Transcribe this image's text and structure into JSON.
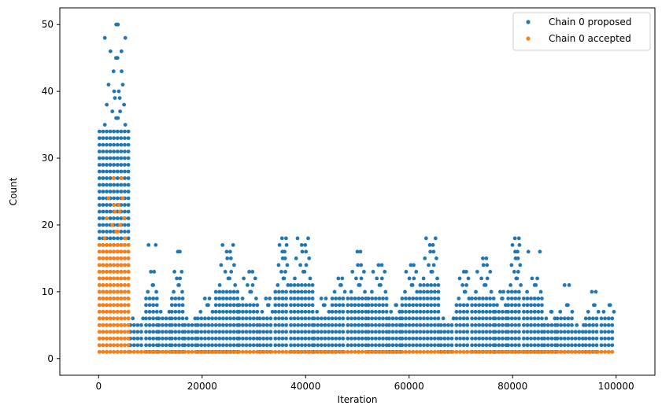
{
  "chart_data": {
    "type": "scatter",
    "xlabel": "Iteration",
    "ylabel": "Count",
    "xlim": [
      -7500,
      107500
    ],
    "ylim": [
      -2.5,
      52.5
    ],
    "xticks": [
      0,
      20000,
      40000,
      60000,
      80000,
      100000
    ],
    "yticks": [
      0,
      10,
      20,
      30,
      40,
      50
    ],
    "legend_position": "top-right",
    "grid": false,
    "series": [
      {
        "name": "Chain 0 proposed",
        "color": "#1f77b4",
        "segments": [
          {
            "x_start": 0,
            "x_end": 6000,
            "y_min": 1,
            "y_max": 34,
            "sparse": [
              35,
              36,
              37,
              38,
              39,
              40,
              41,
              43,
              45,
              46,
              48,
              50
            ]
          },
          {
            "x_start": 6000,
            "x_end": 9000,
            "y_min": 1,
            "y_max": 5,
            "sparse": [
              6
            ]
          },
          {
            "x_start": 9000,
            "x_end": 11500,
            "y_min": 1,
            "y_max": 9,
            "sparse": [
              10,
              11,
              13,
              17
            ]
          },
          {
            "x_start": 11500,
            "x_end": 14000,
            "y_min": 1,
            "y_max": 6,
            "sparse": [
              7
            ]
          },
          {
            "x_start": 14000,
            "x_end": 16500,
            "y_min": 1,
            "y_max": 9,
            "sparse": [
              10,
              11,
              12,
              13,
              16
            ]
          },
          {
            "x_start": 16500,
            "x_end": 19000,
            "y_min": 1,
            "y_max": 5,
            "sparse": [
              6
            ]
          },
          {
            "x_start": 19000,
            "x_end": 22500,
            "y_min": 1,
            "y_max": 6,
            "sparse": [
              7,
              8,
              9
            ]
          },
          {
            "x_start": 22500,
            "x_end": 27000,
            "y_min": 1,
            "y_max": 10,
            "sparse": [
              11,
              12,
              13,
              14,
              15,
              16,
              17
            ]
          },
          {
            "x_start": 27000,
            "x_end": 31000,
            "y_min": 1,
            "y_max": 8,
            "sparse": [
              9,
              10,
              11,
              12,
              13
            ]
          },
          {
            "x_start": 31000,
            "x_end": 34000,
            "y_min": 1,
            "y_max": 6,
            "sparse": [
              7,
              8,
              9
            ]
          },
          {
            "x_start": 34000,
            "x_end": 37000,
            "y_min": 1,
            "y_max": 10,
            "sparse": [
              11,
              12,
              13,
              14,
              15,
              16,
              17,
              18
            ]
          },
          {
            "x_start": 37000,
            "x_end": 41500,
            "y_min": 1,
            "y_max": 11,
            "sparse": [
              12,
              13,
              14,
              15,
              16,
              17,
              18
            ]
          },
          {
            "x_start": 41500,
            "x_end": 45000,
            "y_min": 1,
            "y_max": 6,
            "sparse": [
              7,
              8,
              9
            ]
          },
          {
            "x_start": 45000,
            "x_end": 48000,
            "y_min": 1,
            "y_max": 9,
            "sparse": [
              10,
              11,
              12
            ]
          },
          {
            "x_start": 48000,
            "x_end": 52000,
            "y_min": 1,
            "y_max": 9,
            "sparse": [
              10,
              11,
              12,
              13,
              14,
              16
            ]
          },
          {
            "x_start": 52000,
            "x_end": 56000,
            "y_min": 1,
            "y_max": 9,
            "sparse": [
              10,
              11,
              12,
              13,
              14
            ]
          },
          {
            "x_start": 56000,
            "x_end": 58500,
            "y_min": 1,
            "y_max": 6,
            "sparse": [
              7,
              8
            ]
          },
          {
            "x_start": 58500,
            "x_end": 62000,
            "y_min": 1,
            "y_max": 9,
            "sparse": [
              10,
              11,
              12,
              13,
              14
            ]
          },
          {
            "x_start": 62000,
            "x_end": 66000,
            "y_min": 1,
            "y_max": 11,
            "sparse": [
              12,
              13,
              14,
              15,
              16,
              17,
              18
            ]
          },
          {
            "x_start": 66000,
            "x_end": 69000,
            "y_min": 1,
            "y_max": 5,
            "sparse": [
              6
            ]
          },
          {
            "x_start": 69000,
            "x_end": 72000,
            "y_min": 1,
            "y_max": 8,
            "sparse": [
              9,
              10,
              11,
              12,
              13
            ]
          },
          {
            "x_start": 72000,
            "x_end": 76500,
            "y_min": 1,
            "y_max": 9,
            "sparse": [
              10,
              11,
              12,
              13,
              14,
              15
            ]
          },
          {
            "x_start": 76500,
            "x_end": 79000,
            "y_min": 1,
            "y_max": 7,
            "sparse": [
              8,
              9,
              10
            ]
          },
          {
            "x_start": 79000,
            "x_end": 82000,
            "y_min": 1,
            "y_max": 10,
            "sparse": [
              11,
              12,
              13,
              14,
              15,
              16,
              17,
              18
            ]
          },
          {
            "x_start": 82000,
            "x_end": 86000,
            "y_min": 1,
            "y_max": 9,
            "sparse": [
              10,
              11,
              12,
              16
            ]
          },
          {
            "x_start": 86000,
            "x_end": 88500,
            "y_min": 1,
            "y_max": 5,
            "sparse": [
              6,
              7
            ]
          },
          {
            "x_start": 88500,
            "x_end": 92000,
            "y_min": 1,
            "y_max": 6,
            "sparse": [
              7,
              8,
              11
            ]
          },
          {
            "x_start": 92000,
            "x_end": 94000,
            "y_min": 1,
            "y_max": 4,
            "sparse": [
              5
            ]
          },
          {
            "x_start": 94000,
            "x_end": 97000,
            "y_min": 1,
            "y_max": 6,
            "sparse": [
              7,
              8,
              10
            ]
          },
          {
            "x_start": 97000,
            "x_end": 100000,
            "y_min": 1,
            "y_max": 6,
            "sparse": [
              7,
              8
            ]
          }
        ]
      },
      {
        "name": "Chain 0 accepted",
        "color": "#ff7f0e",
        "segments": [
          {
            "x_start": 0,
            "x_end": 6000,
            "y_min": 1,
            "y_max": 17,
            "sparse": [
              18,
              19,
              20,
              21,
              22,
              23,
              24,
              27
            ]
          },
          {
            "x_start": 6000,
            "x_end": 100000,
            "y_min": 1,
            "y_max": 1,
            "sparse": []
          }
        ]
      }
    ]
  }
}
